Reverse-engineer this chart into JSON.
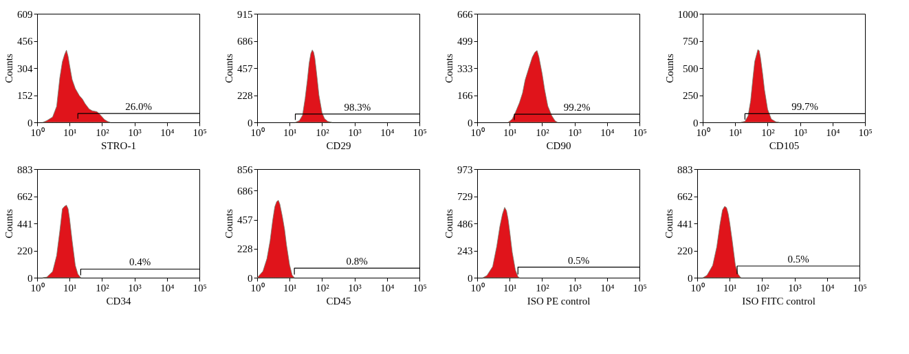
{
  "chart_data": [
    {
      "type": "area",
      "xlabel": "STRO-1",
      "ylabel": "Counts",
      "log": "x",
      "grid": false,
      "xlim": [
        1,
        100000
      ],
      "xticks": [
        {
          "value": 1,
          "label": "10⁰"
        },
        {
          "value": 10,
          "label": "10¹"
        },
        {
          "value": 100,
          "label": "10²"
        },
        {
          "value": 1000,
          "label": "10³"
        },
        {
          "value": 10000,
          "label": "10⁴"
        },
        {
          "value": 100000,
          "label": "10⁵"
        }
      ],
      "ylim": [
        0,
        609
      ],
      "yticks": [
        0,
        152,
        304,
        456,
        609
      ],
      "x": [
        1.5,
        2,
        3,
        4,
        5,
        6,
        7,
        8,
        9,
        10,
        12,
        15,
        20,
        25,
        30,
        40,
        50,
        70,
        90,
        120,
        150,
        180
      ],
      "series": [
        {
          "color": "#e0141b",
          "values": [
            0,
            10,
            30,
            90,
            250,
            340,
            380,
            405,
            370,
            320,
            240,
            190,
            150,
            130,
            105,
            75,
            65,
            60,
            40,
            15,
            5,
            0
          ]
        },
        {
          "type": "line",
          "color": "#000000",
          "x": [
            18,
            18,
            100000
          ],
          "values": [
            20,
            50,
            50
          ]
        }
      ],
      "annotations": [
        {
          "text": "26.0%",
          "x": 1342,
          "y": 50
        }
      ]
    },
    {
      "type": "area",
      "xlabel": "CD29",
      "ylabel": "Counts",
      "log": "x",
      "grid": false,
      "xlim": [
        1,
        100000
      ],
      "xticks": [
        {
          "value": 1,
          "label": "10⁰"
        },
        {
          "value": 10,
          "label": "10¹"
        },
        {
          "value": 100,
          "label": "10²"
        },
        {
          "value": 1000,
          "label": "10³"
        },
        {
          "value": 10000,
          "label": "10⁴"
        },
        {
          "value": 100000,
          "label": "10⁵"
        }
      ],
      "ylim": [
        0,
        915
      ],
      "yticks": [
        0,
        228,
        457,
        686,
        915
      ],
      "x": [
        15,
        20,
        25,
        30,
        35,
        40,
        45,
        50,
        55,
        60,
        70,
        80,
        100,
        120,
        150,
        200
      ],
      "series": [
        {
          "color": "#e0141b",
          "values": [
            0,
            15,
            60,
            200,
            350,
            500,
            580,
            610,
            590,
            540,
            380,
            230,
            80,
            30,
            8,
            0
          ]
        },
        {
          "type": "line",
          "color": "#000000",
          "x": [
            15,
            15,
            100000
          ],
          "values": [
            20,
            70,
            70
          ]
        }
      ],
      "annotations": [
        {
          "text": "98.3%",
          "x": 1225,
          "y": 70
        }
      ]
    },
    {
      "type": "area",
      "xlabel": "CD90",
      "ylabel": "Counts",
      "log": "x",
      "grid": false,
      "xlim": [
        1,
        100000
      ],
      "xticks": [
        {
          "value": 1,
          "label": "10⁰"
        },
        {
          "value": 10,
          "label": "10¹"
        },
        {
          "value": 100,
          "label": "10²"
        },
        {
          "value": 1000,
          "label": "10³"
        },
        {
          "value": 10000,
          "label": "10⁴"
        },
        {
          "value": 100000,
          "label": "10⁵"
        }
      ],
      "ylim": [
        0,
        666
      ],
      "yticks": [
        0,
        166,
        333,
        499,
        666
      ],
      "x": [
        9,
        12,
        15,
        20,
        25,
        30,
        40,
        50,
        60,
        70,
        80,
        100,
        120,
        150,
        200,
        250,
        300
      ],
      "series": [
        {
          "color": "#e0141b",
          "values": [
            0,
            20,
            60,
            120,
            180,
            260,
            340,
            400,
            430,
            440,
            400,
            300,
            200,
            100,
            40,
            10,
            0
          ]
        },
        {
          "type": "line",
          "color": "#000000",
          "x": [
            14,
            14,
            100000
          ],
          "values": [
            15,
            50,
            50
          ]
        }
      ],
      "annotations": [
        {
          "text": "99.2%",
          "x": 1183,
          "y": 50
        }
      ]
    },
    {
      "type": "area",
      "xlabel": "CD105",
      "ylabel": "Counts",
      "log": "x",
      "grid": false,
      "xlim": [
        1,
        100000
      ],
      "xticks": [
        {
          "value": 1,
          "label": "10⁰"
        },
        {
          "value": 10,
          "label": "10¹"
        },
        {
          "value": 100,
          "label": "10²"
        },
        {
          "value": 1000,
          "label": "10³"
        },
        {
          "value": 10000,
          "label": "10⁴"
        },
        {
          "value": 100000,
          "label": "10⁵"
        }
      ],
      "ylim": [
        0,
        1000
      ],
      "yticks": [
        0,
        250,
        500,
        750,
        {
          "value": 1000,
          "label": "1000"
        }
      ],
      "x": [
        15,
        20,
        25,
        30,
        35,
        40,
        50,
        55,
        60,
        70,
        80,
        100,
        130,
        180,
        230
      ],
      "series": [
        {
          "color": "#e0141b",
          "values": [
            0,
            10,
            60,
            200,
            400,
            560,
            670,
            660,
            600,
            450,
            300,
            120,
            30,
            5,
            0
          ]
        },
        {
          "type": "line",
          "color": "#000000",
          "x": [
            20,
            20,
            100000
          ],
          "values": [
            25,
            80,
            80
          ]
        }
      ],
      "annotations": [
        {
          "text": "99.7%",
          "x": 1414,
          "y": 80
        }
      ]
    },
    {
      "type": "area",
      "xlabel": "CD34",
      "ylabel": "Counts",
      "log": "x",
      "grid": false,
      "xlim": [
        1,
        100000
      ],
      "xticks": [
        {
          "value": 1,
          "label": "10⁰"
        },
        {
          "value": 10,
          "label": "10¹"
        },
        {
          "value": 100,
          "label": "10²"
        },
        {
          "value": 1000,
          "label": "10³"
        },
        {
          "value": 10000,
          "label": "10⁴"
        },
        {
          "value": 100000,
          "label": "10⁵"
        }
      ],
      "ylim": [
        0,
        883
      ],
      "yticks": [
        0,
        220,
        441,
        662,
        883
      ],
      "x": [
        1.5,
        2,
        3,
        4,
        5,
        6,
        7,
        8,
        9,
        10,
        12,
        15,
        18,
        22
      ],
      "series": [
        {
          "color": "#e0141b",
          "values": [
            0,
            5,
            50,
            180,
            380,
            560,
            580,
            590,
            560,
            480,
            300,
            100,
            30,
            0
          ]
        },
        {
          "type": "line",
          "color": "#000000",
          "x": [
            22,
            22,
            100000
          ],
          "values": [
            20,
            70,
            70
          ]
        }
      ],
      "annotations": [
        {
          "text": "0.4%",
          "x": 1483,
          "y": 70
        }
      ]
    },
    {
      "type": "area",
      "xlabel": "CD45",
      "ylabel": "Counts",
      "log": "x",
      "grid": false,
      "xlim": [
        1,
        100000
      ],
      "xticks": [
        {
          "value": 1,
          "label": "10⁰"
        },
        {
          "value": 10,
          "label": "10¹"
        },
        {
          "value": 100,
          "label": "10²"
        },
        {
          "value": 1000,
          "label": "10³"
        },
        {
          "value": 10000,
          "label": "10⁴"
        },
        {
          "value": 100000,
          "label": "10⁵"
        }
      ],
      "ylim": [
        0,
        856
      ],
      "yticks": [
        0,
        228,
        457,
        686,
        856
      ],
      "x": [
        1,
        1.5,
        2,
        2.5,
        3,
        3.5,
        4,
        4.5,
        5,
        6,
        7,
        8,
        10,
        12,
        14
      ],
      "series": [
        {
          "color": "#e0141b",
          "values": [
            0,
            50,
            150,
            290,
            450,
            560,
            600,
            610,
            580,
            480,
            380,
            260,
            100,
            20,
            0
          ]
        },
        {
          "type": "line",
          "color": "#000000",
          "x": [
            14,
            14,
            100000
          ],
          "values": [
            25,
            75,
            75
          ]
        }
      ],
      "annotations": [
        {
          "text": "0.8%",
          "x": 1183,
          "y": 75
        }
      ]
    },
    {
      "type": "area",
      "xlabel": "ISO PE control",
      "ylabel": "Counts",
      "log": "x",
      "grid": false,
      "xlim": [
        1,
        100000
      ],
      "xticks": [
        {
          "value": 1,
          "label": "10⁰"
        },
        {
          "value": 10,
          "label": "10¹"
        },
        {
          "value": 100,
          "label": "10²"
        },
        {
          "value": 1000,
          "label": "10³"
        },
        {
          "value": 10000,
          "label": "10⁴"
        },
        {
          "value": 100000,
          "label": "10⁵"
        }
      ],
      "ylim": [
        0,
        973
      ],
      "yticks": [
        0,
        243,
        486,
        729,
        973
      ],
      "x": [
        1.5,
        2,
        3,
        4,
        5,
        6,
        7,
        8,
        9,
        10,
        12,
        15,
        18,
        20
      ],
      "series": [
        {
          "color": "#e0141b",
          "values": [
            0,
            20,
            100,
            280,
            460,
            570,
            630,
            600,
            520,
            420,
            230,
            70,
            10,
            0
          ]
        },
        {
          "type": "line",
          "color": "#000000",
          "x": [
            18,
            18,
            100000
          ],
          "values": [
            30,
            95,
            95
          ]
        }
      ],
      "annotations": [
        {
          "text": "0.5%",
          "x": 1342,
          "y": 95
        }
      ]
    },
    {
      "type": "area",
      "xlabel": "ISO FITC control",
      "ylabel": "Counts",
      "log": "x",
      "grid": false,
      "xlim": [
        1,
        100000
      ],
      "xticks": [
        {
          "value": 1,
          "label": "10⁰"
        },
        {
          "value": 10,
          "label": "10¹"
        },
        {
          "value": 100,
          "label": "10²"
        },
        {
          "value": 1000,
          "label": "10³"
        },
        {
          "value": 10000,
          "label": "10⁴"
        },
        {
          "value": 100000,
          "label": "10⁵"
        }
      ],
      "ylim": [
        0,
        883
      ],
      "yticks": [
        0,
        220,
        441,
        662,
        883
      ],
      "x": [
        1.5,
        2,
        3,
        4,
        5,
        6,
        7,
        8,
        9,
        10,
        12,
        15,
        18,
        22
      ],
      "series": [
        {
          "color": "#e0141b",
          "values": [
            0,
            20,
            100,
            250,
            430,
            550,
            580,
            570,
            520,
            450,
            300,
            100,
            30,
            0
          ]
        },
        {
          "type": "line",
          "color": "#000000",
          "x": [
            17,
            17,
            100000
          ],
          "values": [
            30,
            95,
            95
          ]
        }
      ],
      "annotations": [
        {
          "text": "0.5%",
          "x": 1304,
          "y": 95
        }
      ]
    }
  ]
}
